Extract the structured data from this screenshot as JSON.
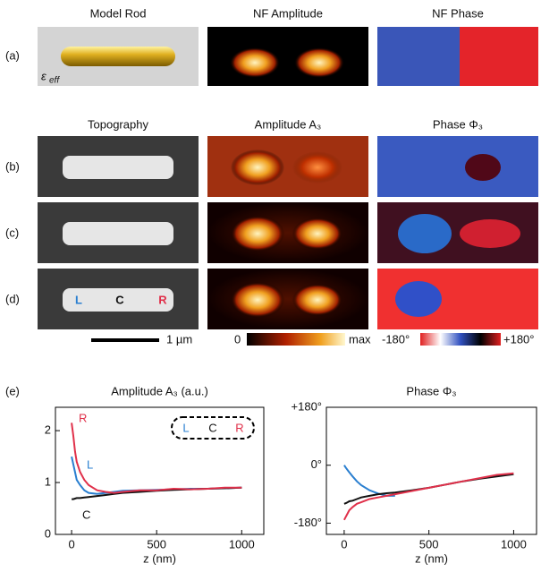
{
  "figure": {
    "columns_top": [
      "Model Rod",
      "NF Amplitude",
      "NF Phase"
    ],
    "columns_bottom": [
      "Topography",
      "Amplitude A₃",
      "Phase Φ₃"
    ],
    "rows": [
      "(a)",
      "(b)",
      "(c)",
      "(d)",
      "(e)"
    ],
    "epsilon": "ε",
    "epsilon_sub": "eff",
    "rod_labels": [
      "L",
      "C",
      "R"
    ],
    "scale_bar": "1 µm",
    "amp_bar": [
      "0",
      "max"
    ],
    "phase_bar": [
      "-180°",
      "+180°"
    ]
  },
  "chart_data": [
    {
      "type": "line",
      "title": "Amplitude A₃ (a.u.)",
      "x_label": "z (nm)",
      "x": [
        0,
        10,
        20,
        30,
        50,
        75,
        100,
        150,
        200,
        250,
        300,
        400,
        500,
        600,
        700,
        800,
        900,
        1000
      ],
      "xlim": [
        -95,
        1130
      ],
      "xticks": [
        0,
        500,
        1000
      ],
      "ylim": [
        0,
        2.45
      ],
      "yticks": [
        0,
        1,
        2
      ],
      "inset_labels": [
        "L",
        "C",
        "R"
      ],
      "series": [
        {
          "name": "L",
          "color": "#2a7fd0",
          "values": [
            1.5,
            1.35,
            1.2,
            1.05,
            0.95,
            0.85,
            0.8,
            0.78,
            0.8,
            0.82,
            0.84,
            0.85,
            0.86,
            0.87,
            0.88,
            0.88,
            0.89,
            0.9
          ]
        },
        {
          "name": "C",
          "color": "#111111",
          "values": [
            0.68,
            0.68,
            0.69,
            0.7,
            0.7,
            0.71,
            0.72,
            0.74,
            0.76,
            0.78,
            0.8,
            0.82,
            0.84,
            0.86,
            0.87,
            0.88,
            0.89,
            0.9
          ]
        },
        {
          "name": "R",
          "color": "#e0304a",
          "values": [
            2.15,
            1.9,
            1.6,
            1.4,
            1.2,
            1.05,
            0.95,
            0.85,
            0.82,
            0.8,
            0.82,
            0.85,
            0.85,
            0.88,
            0.87,
            0.88,
            0.9,
            0.9
          ]
        }
      ]
    },
    {
      "type": "line",
      "title": "Phase Φ₃",
      "x_label": "z (nm)",
      "x": [
        0,
        10,
        20,
        30,
        50,
        75,
        100,
        150,
        200,
        250,
        300,
        400,
        500,
        600,
        700,
        800,
        900,
        1000
      ],
      "xlim": [
        -105,
        1135
      ],
      "xticks": [
        0,
        500,
        1000
      ],
      "ylim": [
        -215,
        180
      ],
      "yticks": [
        {
          "value": 180,
          "label": "+180°"
        },
        {
          "value": 0,
          "label": "0°"
        },
        {
          "value": -180,
          "label": "-180°"
        }
      ],
      "series": [
        {
          "name": "L",
          "color": "#2a7fd0",
          "values": [
            0,
            -8,
            -15,
            -22,
            -35,
            -50,
            -62,
            -78,
            -88,
            -95,
            -95,
            null,
            null,
            null,
            null,
            null,
            null,
            null
          ]
        },
        {
          "name": "C",
          "color": "#111111",
          "values": [
            -120,
            -118,
            -115,
            -112,
            -110,
            -105,
            -100,
            -95,
            -90,
            -87,
            -85,
            -78,
            -70,
            -60,
            -50,
            -42,
            -35,
            -28
          ]
        },
        {
          "name": "R",
          "color": "#e0304a",
          "values": [
            -170,
            -160,
            -150,
            -140,
            -130,
            -120,
            -115,
            -105,
            -100,
            -95,
            -90,
            -80,
            -70,
            -60,
            -50,
            -40,
            -30,
            -25
          ]
        }
      ]
    }
  ]
}
